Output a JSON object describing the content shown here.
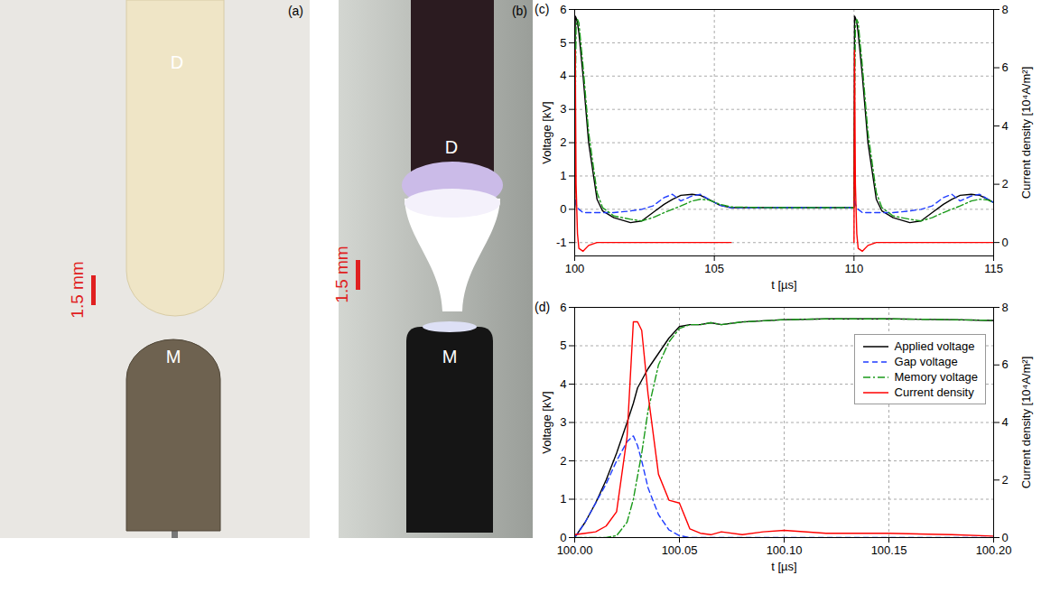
{
  "photos": [
    {
      "letter": "(a)",
      "labels": [
        "D",
        "M"
      ],
      "scale_bar": "1.5 mm"
    },
    {
      "letter": "(b)",
      "labels": [
        "D",
        "M"
      ],
      "scale_bar": "1.5 mm"
    }
  ],
  "chart_data": [
    {
      "type": "line",
      "title": "(c)",
      "x_label": "t [µs]",
      "y_label": "Voltage [kV]",
      "y2_label": "Current density [10⁴A/m²]",
      "grid": true,
      "xlim": [
        100,
        115
      ],
      "xticks": [
        100,
        105,
        110,
        115
      ],
      "ylim": [
        -1.4,
        6
      ],
      "yticks": [
        -1,
        0,
        1,
        2,
        3,
        4,
        5,
        6
      ],
      "y2lim": [
        -0.46,
        8
      ],
      "y2ticks": [
        0,
        2,
        4,
        6,
        8
      ],
      "x": [
        100,
        100.02,
        100.05,
        100.1,
        100.15,
        100.3,
        100.5,
        100.8,
        101,
        101.4,
        102,
        102.4,
        102.8,
        103.2,
        103.5,
        103.8,
        104.2,
        104.5,
        104.8,
        105.2,
        105.6,
        107,
        109.98,
        110,
        110.02,
        110.05,
        110.1,
        110.15,
        110.3,
        110.5,
        110.8,
        111,
        111.4,
        112,
        112.4,
        112.8,
        113.2,
        113.5,
        113.8,
        114.2,
        114.5,
        114.8,
        115
      ],
      "series": [
        {
          "name": "Applied voltage",
          "color": "#000000",
          "line_style": "solid",
          "values": [
            0.05,
            5.8,
            5.75,
            5.6,
            5.3,
            4.0,
            2.0,
            0.3,
            -0.05,
            -0.25,
            -0.4,
            -0.35,
            -0.1,
            0.15,
            0.3,
            0.42,
            0.45,
            0.42,
            0.3,
            0.12,
            0.05,
            0.05,
            0.05,
            0.05,
            5.8,
            5.75,
            5.6,
            5.3,
            4.0,
            2.0,
            0.3,
            -0.05,
            -0.25,
            -0.4,
            -0.35,
            -0.1,
            0.15,
            0.3,
            0.42,
            0.45,
            0.42,
            0.3,
            0.2
          ]
        },
        {
          "name": "Gap voltage",
          "color": "#1f3cff",
          "line_style": "dashed",
          "values": [
            0.05,
            0.3,
            0.15,
            0.05,
            0.0,
            -0.1,
            -0.1,
            -0.1,
            -0.1,
            -0.1,
            -0.05,
            0.0,
            0.1,
            0.35,
            0.45,
            0.25,
            0.4,
            0.45,
            0.3,
            0.12,
            0.05,
            0.05,
            0.05,
            0.05,
            0.3,
            0.15,
            0.05,
            0.0,
            -0.1,
            -0.1,
            -0.1,
            -0.1,
            -0.1,
            -0.05,
            0.0,
            0.1,
            0.35,
            0.45,
            0.25,
            0.4,
            0.45,
            0.3,
            0.2
          ]
        },
        {
          "name": "Memory voltage",
          "color": "#1a9a1a",
          "line_style": "dashdot",
          "values": [
            0.05,
            3.0,
            5.5,
            5.7,
            5.6,
            4.3,
            2.3,
            0.5,
            0.05,
            -0.2,
            -0.3,
            -0.35,
            -0.25,
            -0.1,
            0.0,
            0.1,
            0.25,
            0.3,
            0.28,
            0.15,
            0.07,
            0.05,
            0.05,
            0.05,
            3.0,
            5.5,
            5.7,
            5.6,
            4.3,
            2.3,
            0.5,
            0.05,
            -0.2,
            -0.3,
            -0.35,
            -0.25,
            -0.1,
            0.0,
            0.1,
            0.25,
            0.3,
            0.28,
            0.2
          ]
        },
        {
          "name": "Current density",
          "color": "#ff0000",
          "line_style": "solid",
          "axis": "y2",
          "values": [
            0,
            6.6,
            2.0,
            0.3,
            -0.2,
            -0.3,
            -0.1,
            0,
            0,
            0,
            0,
            0,
            0,
            0,
            0,
            0,
            0,
            0,
            0,
            0,
            0,
            null,
            null,
            0,
            6.6,
            2.0,
            0.3,
            -0.2,
            -0.3,
            -0.1,
            0,
            0,
            0,
            0,
            0,
            0,
            0,
            0,
            0,
            0,
            0,
            0,
            0
          ]
        }
      ]
    },
    {
      "type": "line",
      "title": "(d)",
      "x_label": "t [µs]",
      "y_label": "Voltage [kV]",
      "y2_label": "Current density [10⁴A/m²]",
      "grid": true,
      "legend": "upper right",
      "xlim": [
        100,
        100.2
      ],
      "xticks": [
        {
          "value": 100,
          "label": "100.00"
        },
        {
          "value": 100.05,
          "label": "100.05"
        },
        {
          "value": 100.1,
          "label": "100.10"
        },
        {
          "value": 100.15,
          "label": "100.15"
        },
        {
          "value": 100.2,
          "label": "100.20"
        }
      ],
      "ylim": [
        0,
        6
      ],
      "yticks": [
        0,
        1,
        2,
        3,
        4,
        5,
        6
      ],
      "y2lim": [
        0,
        8
      ],
      "y2ticks": [
        0,
        2,
        4,
        6,
        8
      ],
      "x": [
        100,
        100.005,
        100.01,
        100.015,
        100.02,
        100.025,
        100.028,
        100.03,
        100.032,
        100.035,
        100.04,
        100.045,
        100.05,
        100.055,
        100.06,
        100.065,
        100.07,
        100.08,
        100.09,
        100.1,
        100.12,
        100.15,
        100.18,
        100.2
      ],
      "series": [
        {
          "name": "Applied voltage",
          "color": "#000000",
          "line_style": "solid",
          "values": [
            0,
            0.4,
            0.9,
            1.5,
            2.2,
            3.0,
            3.5,
            3.9,
            4.1,
            4.4,
            4.8,
            5.2,
            5.5,
            5.55,
            5.55,
            5.6,
            5.55,
            5.62,
            5.65,
            5.68,
            5.7,
            5.7,
            5.68,
            5.66
          ]
        },
        {
          "name": "Gap voltage",
          "color": "#1f3cff",
          "line_style": "dashed",
          "values": [
            0,
            0.4,
            0.9,
            1.4,
            2.0,
            2.5,
            2.65,
            2.4,
            2.0,
            1.3,
            0.6,
            0.2,
            0.05,
            0,
            0,
            0,
            0,
            0,
            0,
            0,
            0,
            0,
            0,
            0
          ]
        },
        {
          "name": "Memory voltage",
          "color": "#1a9a1a",
          "line_style": "dashdot",
          "values": [
            0,
            0,
            0,
            0,
            0.05,
            0.4,
            1.0,
            1.6,
            2.2,
            3.3,
            4.5,
            5.1,
            5.45,
            5.55,
            5.55,
            5.6,
            5.55,
            5.62,
            5.65,
            5.68,
            5.7,
            5.7,
            5.68,
            5.66
          ]
        },
        {
          "name": "Current density",
          "color": "#ff0000",
          "line_style": "solid",
          "axis": "y2",
          "values": [
            0.1,
            0.15,
            0.2,
            0.4,
            0.9,
            3.5,
            7.5,
            7.5,
            7.2,
            5.0,
            2.2,
            1.3,
            1.2,
            0.3,
            0.15,
            0.1,
            0.2,
            0.1,
            0.2,
            0.25,
            0.15,
            0.15,
            0.1,
            0.05
          ]
        }
      ]
    }
  ]
}
